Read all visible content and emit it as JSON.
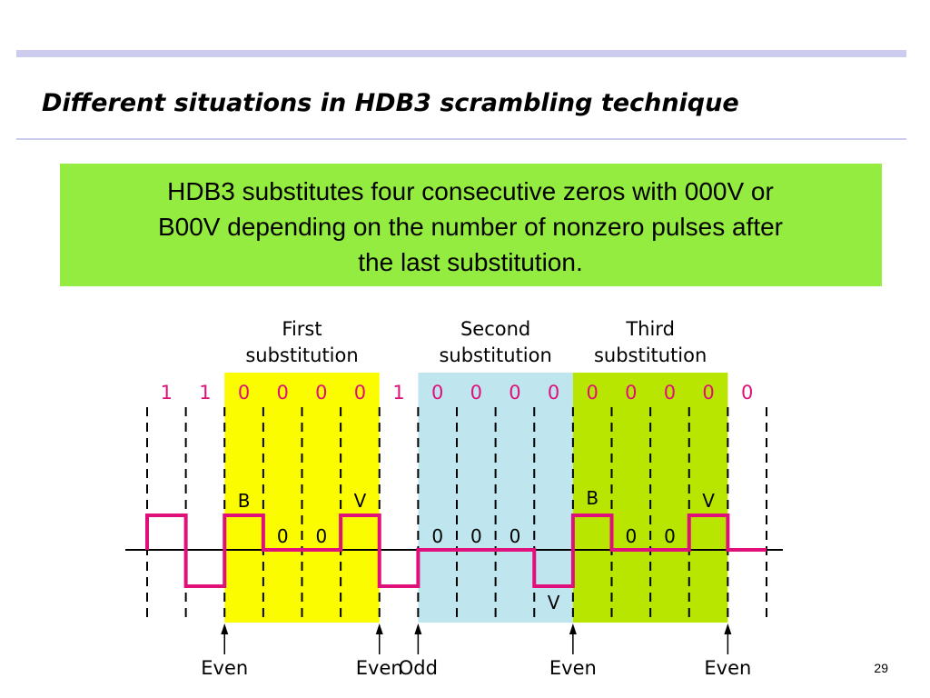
{
  "title": "Different situations in HDB3 scrambling technique",
  "note": [
    "HDB3 substitutes four consecutive zeros with 000V or",
    "B00V depending on the number of nonzero pulses after",
    "the last substitution."
  ],
  "diagram": {
    "regions": [
      [
        "First",
        "substitution"
      ],
      [
        "Second",
        "substitution"
      ],
      [
        "Third",
        "substitution"
      ]
    ],
    "bits": [
      "1",
      "1",
      "0",
      "0",
      "0",
      "0",
      "1",
      "0",
      "0",
      "0",
      "0",
      "0",
      "0",
      "0",
      "0",
      "0"
    ],
    "pulse_labels": [
      "B",
      "0",
      "0",
      "V",
      "0",
      "0",
      "0",
      "V",
      "B",
      "0",
      "0",
      "V"
    ],
    "parity": [
      "Even",
      "Even",
      "Odd",
      "Even",
      "Even"
    ]
  },
  "page_number": "29"
}
